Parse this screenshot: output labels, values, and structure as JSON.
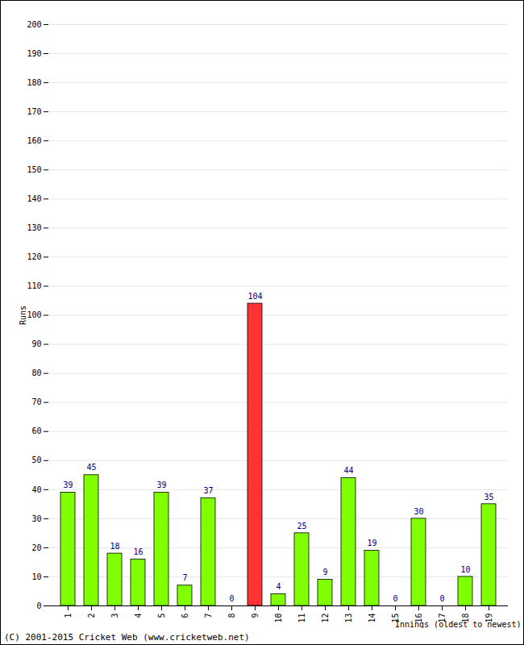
{
  "chart_data": {
    "type": "bar",
    "x_label": "Innings (oldest to newest)",
    "y_label": "Runs",
    "caption": "(C) 2001-2015 Cricket Web (www.cricketweb.net)",
    "categories": [
      "1",
      "2",
      "3",
      "4",
      "5",
      "6",
      "7",
      "8",
      "9",
      "10",
      "11",
      "12",
      "13",
      "14",
      "15",
      "16",
      "17",
      "18",
      "19"
    ],
    "values": [
      39,
      45,
      18,
      16,
      39,
      7,
      37,
      0,
      104,
      4,
      25,
      9,
      44,
      19,
      0,
      30,
      0,
      10,
      35
    ],
    "colors": [
      "#80ff00",
      "#80ff00",
      "#80ff00",
      "#80ff00",
      "#80ff00",
      "#80ff00",
      "#80ff00",
      "#80ff00",
      "#ff3333",
      "#80ff00",
      "#80ff00",
      "#80ff00",
      "#80ff00",
      "#80ff00",
      "#80ff00",
      "#80ff00",
      "#80ff00",
      "#80ff00",
      "#80ff00"
    ],
    "ylim": [
      0,
      200
    ],
    "yticks": [
      0,
      10,
      20,
      30,
      40,
      50,
      60,
      70,
      80,
      90,
      100,
      110,
      120,
      130,
      140,
      150,
      160,
      170,
      180,
      190,
      200
    ],
    "grid": true,
    "data_labels": true
  }
}
